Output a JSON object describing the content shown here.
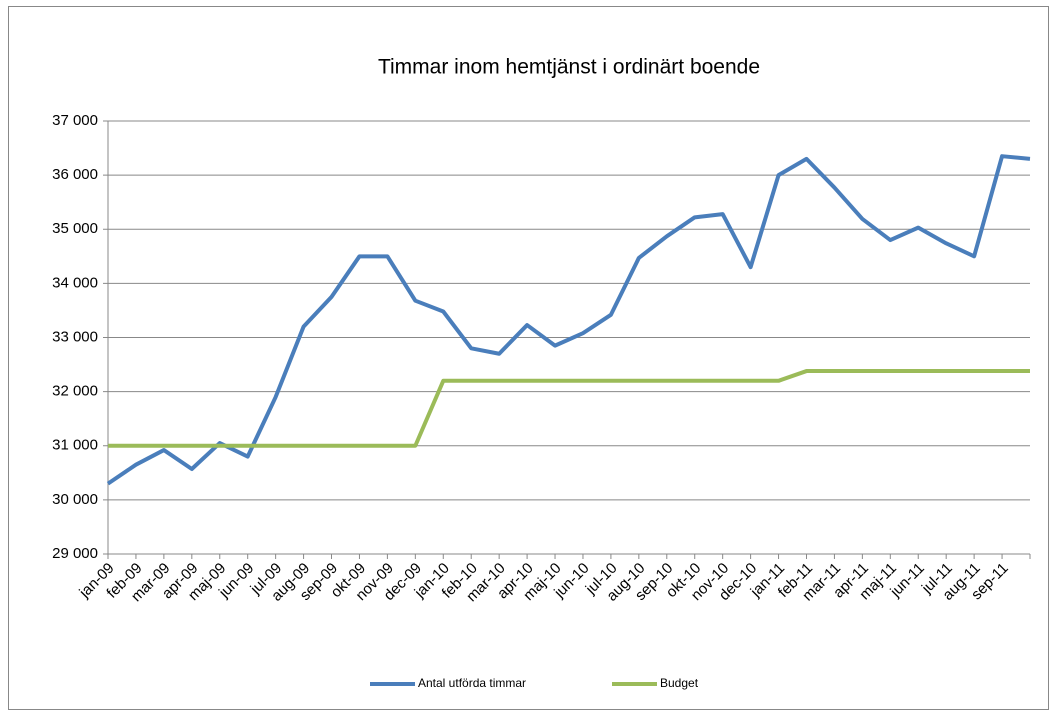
{
  "chart_data": {
    "type": "line",
    "title": "Timmar inom hemtjänst i ordinärt boende",
    "categories": [
      "jan-09",
      "feb-09",
      "mar-09",
      "apr-09",
      "maj-09",
      "jun-09",
      "jul-09",
      "aug-09",
      "sep-09",
      "okt-09",
      "nov-09",
      "dec-09",
      "jan-10",
      "feb-10",
      "mar-10",
      "apr-10",
      "maj-10",
      "jun-10",
      "jul-10",
      "aug-10",
      "sep-10",
      "okt-10",
      "nov-10",
      "dec-10",
      "jan-11",
      "feb-11",
      "mar-11",
      "apr-11",
      "maj-11",
      "jun-11",
      "jul-11",
      "aug-11",
      "sep-11",
      null
    ],
    "series": [
      {
        "name": "Antal utförda timmar",
        "color": "#4a7ebb",
        "values": [
          30300,
          30650,
          30920,
          30570,
          31050,
          30800,
          31900,
          33200,
          33750,
          34500,
          34500,
          33680,
          33480,
          32800,
          32700,
          33230,
          32850,
          33080,
          33420,
          34470,
          34870,
          35220,
          35280,
          34300,
          36000,
          36300,
          35770,
          35190,
          34800,
          35030,
          34740,
          34500,
          36350,
          36300
        ]
      },
      {
        "name": "Budget",
        "color": "#9bbb59",
        "values": [
          31000,
          31000,
          31000,
          31000,
          31000,
          31000,
          31000,
          31000,
          31000,
          31000,
          31000,
          31000,
          32200,
          32200,
          32200,
          32200,
          32200,
          32200,
          32200,
          32200,
          32200,
          32200,
          32200,
          32200,
          32200,
          32380,
          32380,
          32380,
          32380,
          32380,
          32380,
          32380,
          32380,
          32380
        ]
      }
    ],
    "ylim": [
      29000,
      37000
    ],
    "yticks": [
      {
        "value": 29000,
        "label": "29 000"
      },
      {
        "value": 30000,
        "label": "30 000"
      },
      {
        "value": 31000,
        "label": "31 000"
      },
      {
        "value": 32000,
        "label": "32 000"
      },
      {
        "value": 33000,
        "label": "33 000"
      },
      {
        "value": 34000,
        "label": "34 000"
      },
      {
        "value": 35000,
        "label": "35 000"
      },
      {
        "value": 36000,
        "label": "36 000"
      },
      {
        "value": 37000,
        "label": "37 000"
      }
    ],
    "grid": true,
    "legend": "bottom"
  }
}
